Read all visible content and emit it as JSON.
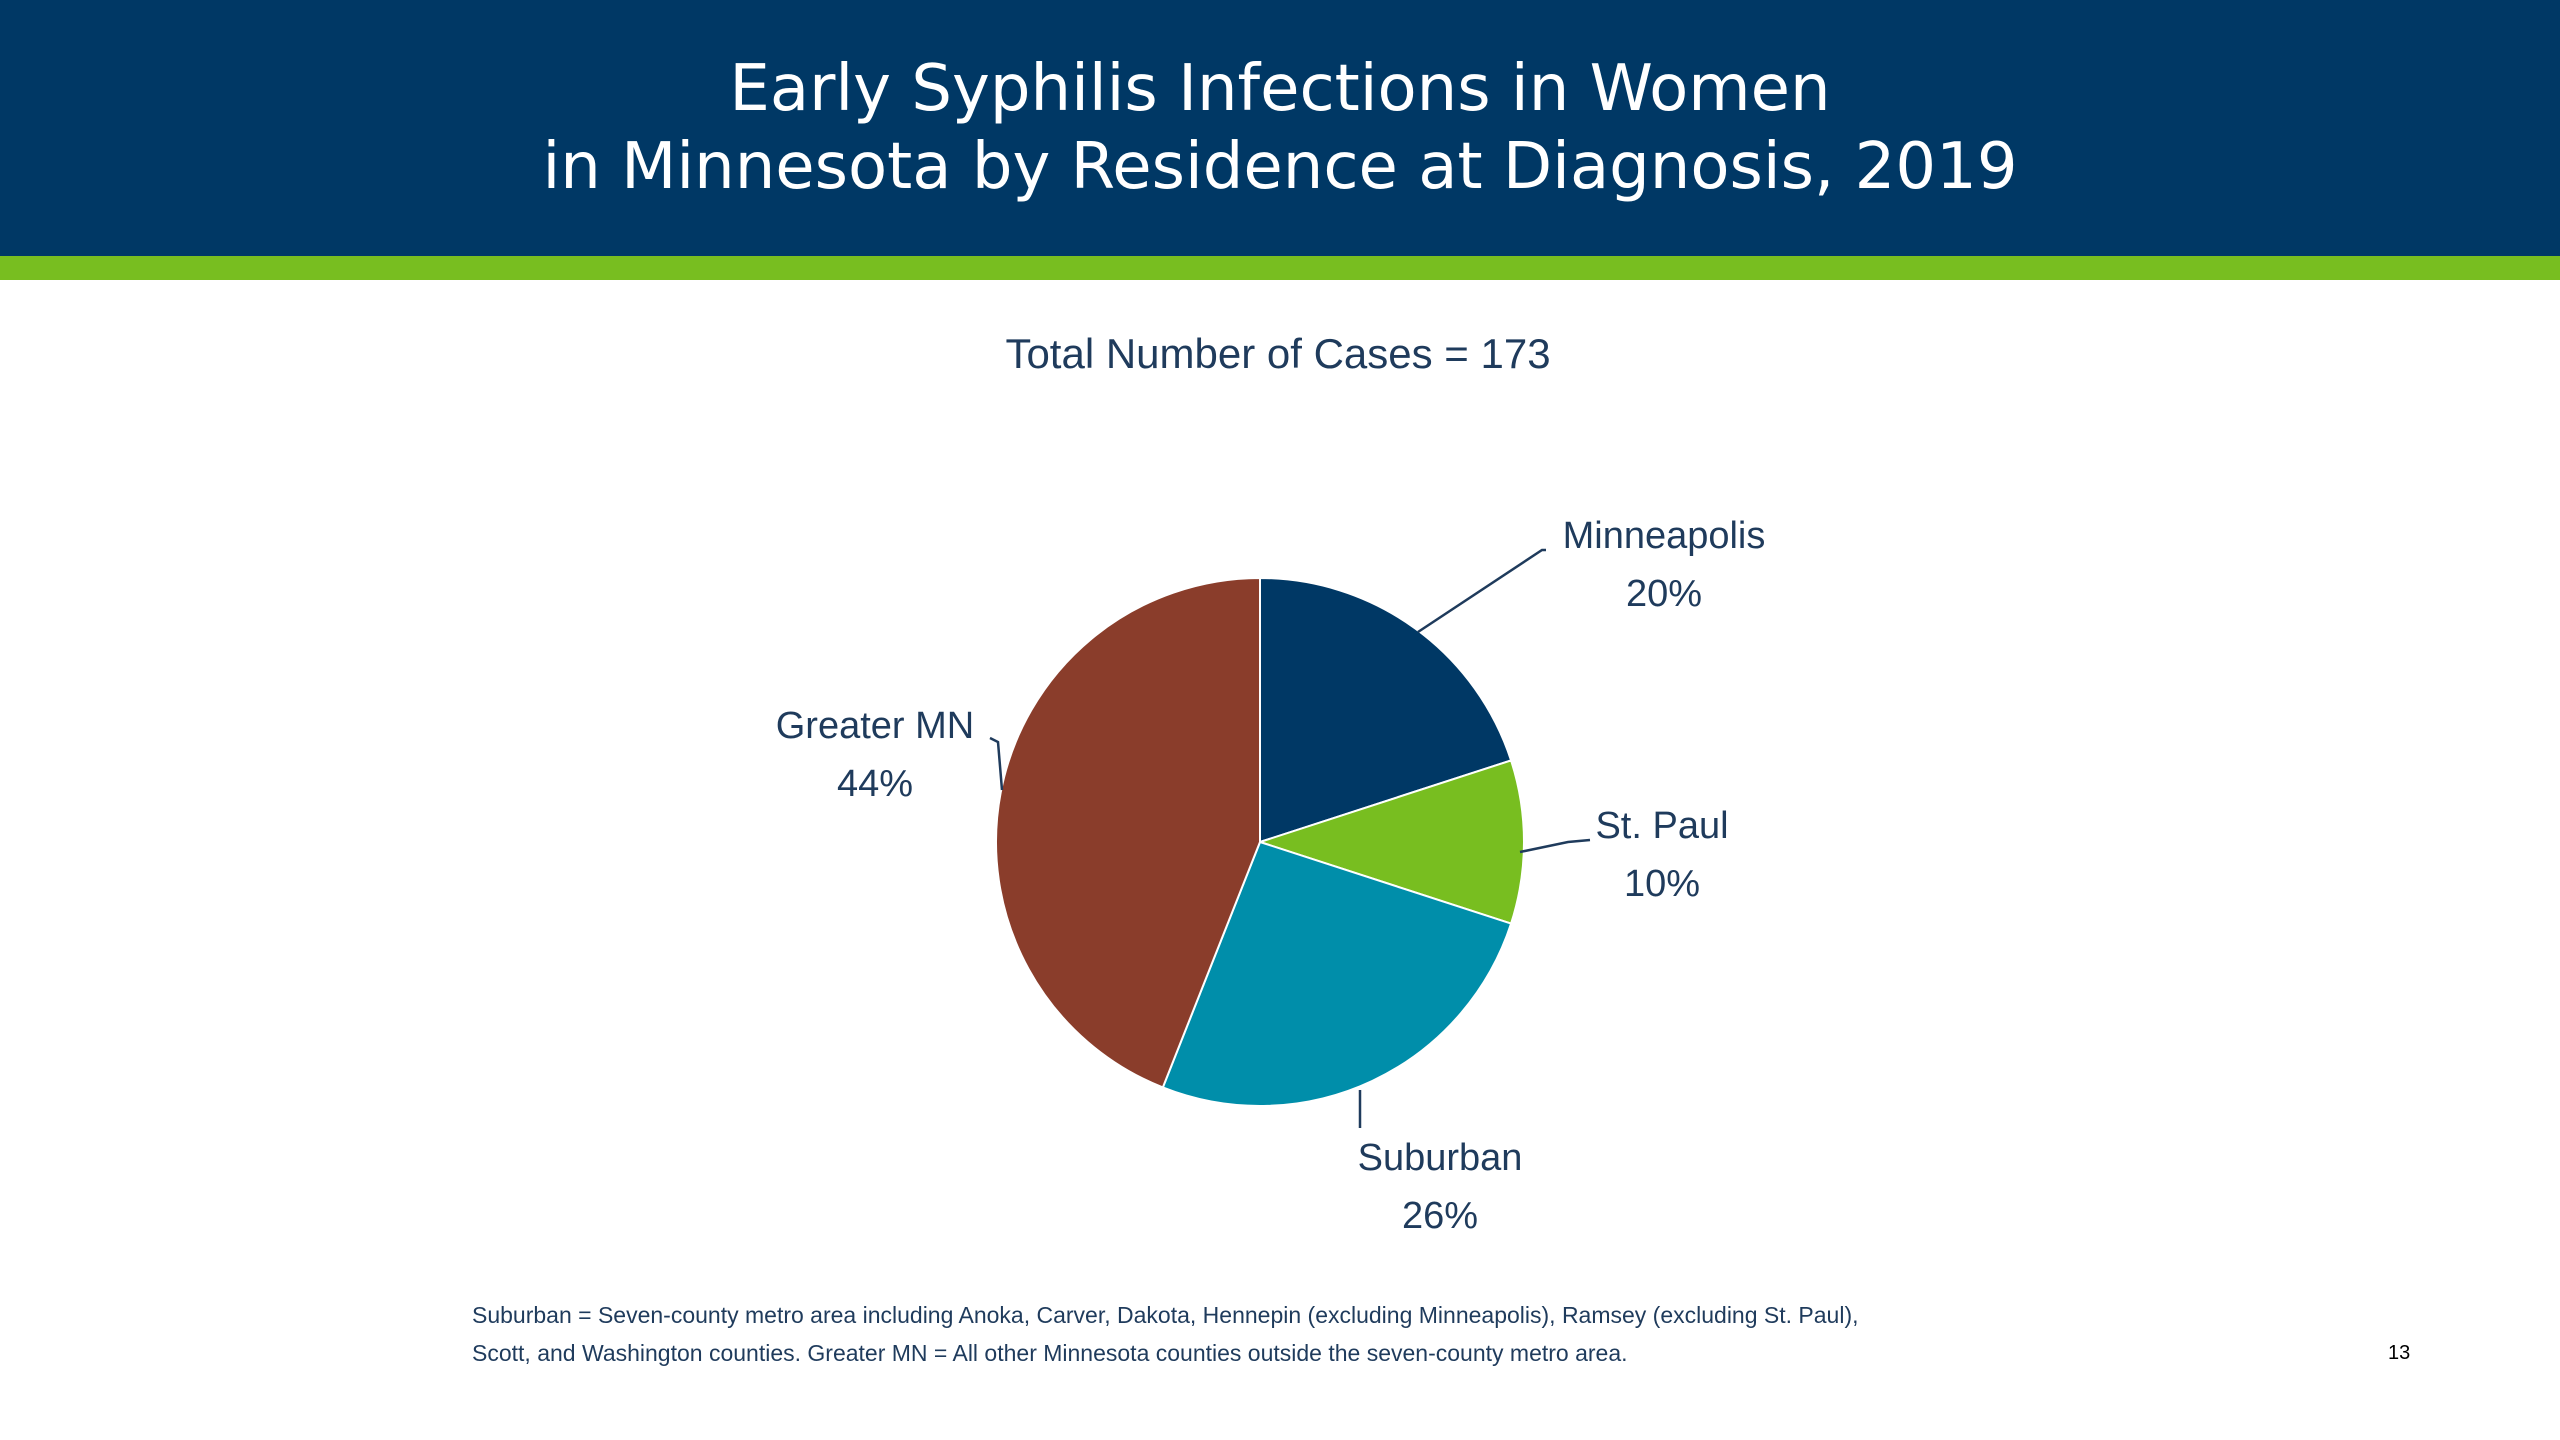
{
  "slide": {
    "title": "Early Syphilis Infections in Women\nin Minnesota by Residence at Diagnosis, 2019",
    "page_number": "13",
    "footnote_lines": [
      "Suburban = Seven-county metro area including Anoka, Carver, Dakota, Hennepin (excluding Minneapolis), Ramsey (excluding St. Paul),",
      "Scott, and Washington counties.   Greater MN = All other Minnesota counties outside the seven-county metro area."
    ]
  },
  "colors": {
    "header_bg": "#003865",
    "accent_bar": "#78BE20",
    "label_text": "#1f3b5c"
  },
  "chart_data": {
    "type": "pie",
    "subtitle": "Total Number of Cases = 173",
    "slices": [
      {
        "label": "Minneapolis",
        "value": 20,
        "value_label": "20%",
        "color": "#003865"
      },
      {
        "label": "St. Paul",
        "value": 10,
        "value_label": "10%",
        "color": "#78BE20"
      },
      {
        "label": "Suburban",
        "value": 26,
        "value_label": "26%",
        "color": "#008EAA"
      },
      {
        "label": "Greater MN",
        "value": 44,
        "value_label": "44%",
        "color": "#8A3D2B"
      }
    ],
    "start_angle": "12 o'clock",
    "direction": "clockwise",
    "legend": "none"
  }
}
